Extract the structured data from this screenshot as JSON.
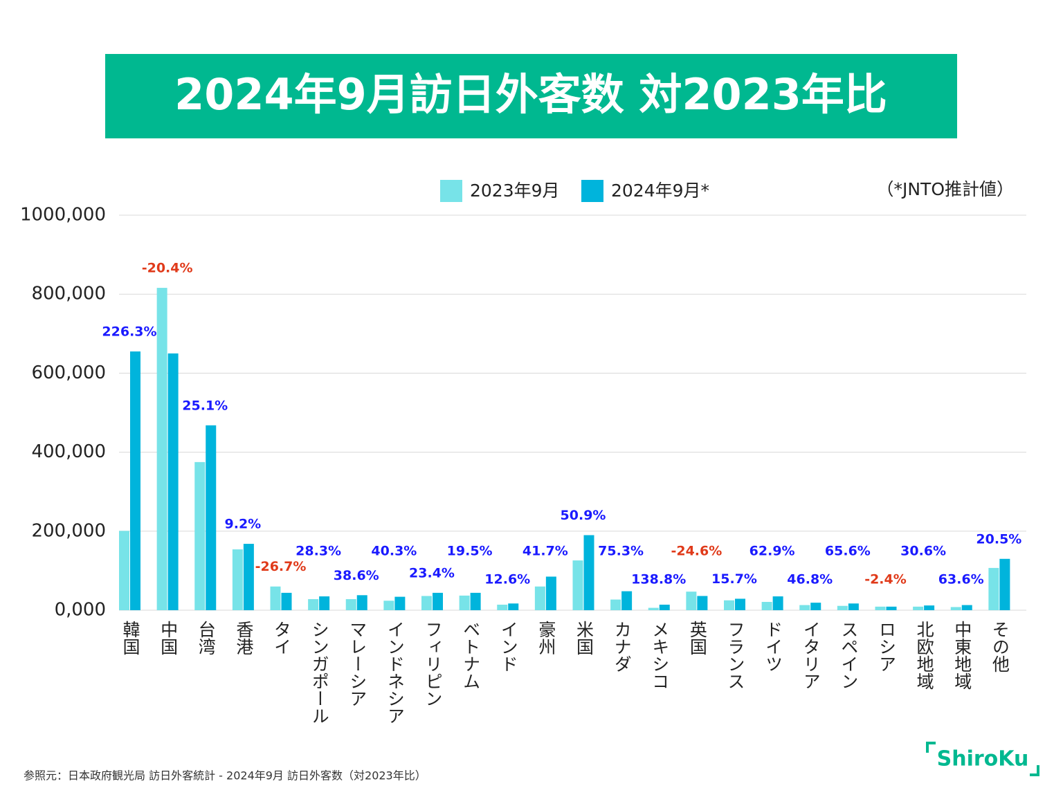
{
  "chart_data": {
    "type": "bar",
    "title": "2024年9月訪日外客数 対2023年比",
    "note": "（*JNTO推計値）",
    "source": "参照元：日本政府観光局 訪日外客統計 - 2024年9月 訪日外客数（対2023年比）",
    "logo": "ShiroKu",
    "categories": [
      "韓国",
      "中国",
      "台湾",
      "香港",
      "タイ",
      "シンガポール",
      "マレーシア",
      "インドネシア",
      "フィリピン",
      "ベトナム",
      "インド",
      "豪州",
      "米国",
      "カナダ",
      "メキシコ",
      "英国",
      "フランス",
      "ドイツ",
      "イタリア",
      "スペイン",
      "ロシア",
      "北欧地域",
      "中東地域",
      "その他"
    ],
    "series": [
      {
        "name": "2023年9月",
        "color": "#77e3e8",
        "values": [
          200800,
          816000,
          375000,
          154000,
          60000,
          28000,
          28000,
          24000,
          36000,
          37000,
          14000,
          60000,
          126000,
          27000,
          6000,
          47000,
          25000,
          21000,
          13000,
          11000,
          9000,
          9000,
          8000,
          107000
        ]
      },
      {
        "name": "2024年9月*",
        "color": "#00b4dc",
        "values": [
          655000,
          650000,
          468000,
          168000,
          44000,
          35000,
          38000,
          34000,
          44000,
          44000,
          17000,
          85000,
          190000,
          48000,
          14000,
          36000,
          29000,
          35000,
          19000,
          17000,
          9000,
          12000,
          13000,
          130000
        ]
      }
    ],
    "change_labels": [
      "226.3%",
      "-20.4%",
      "25.1%",
      "9.2%",
      "-26.7%",
      "28.3%",
      "38.6%",
      "40.3%",
      "23.4%",
      "19.5%",
      "12.6%",
      "41.7%",
      "50.9%",
      "75.3%",
      "138.8%",
      "-24.6%",
      "15.7%",
      "62.9%",
      "46.8%",
      "65.6%",
      "-2.4%",
      "30.6%",
      "63.6%",
      "20.5%"
    ],
    "positive_color": "#1a1aff",
    "negative_color": "#e03a1a",
    "ylim": [
      0,
      1000000
    ],
    "yticks": [
      {
        "value": 0,
        "label": "0,000"
      },
      {
        "value": 200000,
        "label": "200,000"
      },
      {
        "value": 400000,
        "label": "400,000"
      },
      {
        "value": 600000,
        "label": "600,000"
      },
      {
        "value": 800000,
        "label": "800,000"
      },
      {
        "value": 1000000,
        "label": "1000,000"
      }
    ],
    "grid": true
  }
}
